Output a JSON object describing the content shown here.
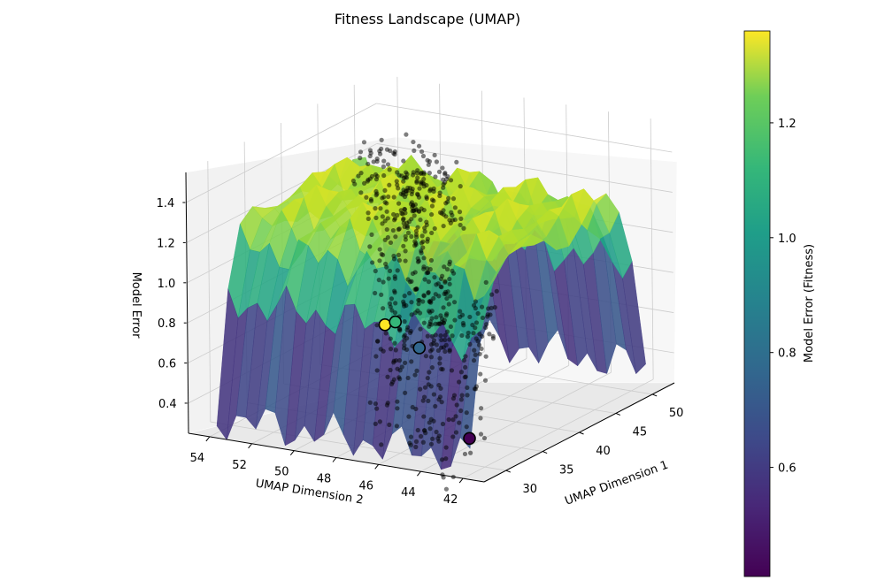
{
  "chart_data": {
    "type": "scatter3d-surface",
    "title": "Fitness Landscape (UMAP)",
    "xlabel": "UMAP Dimension 1",
    "ylabel": "UMAP Dimension 2",
    "zlabel": "Model Error",
    "xlim": [
      27,
      53
    ],
    "ylim": [
      41,
      55
    ],
    "zlim": [
      0.25,
      1.55
    ],
    "x_ticks": [
      "30",
      "35",
      "40",
      "45",
      "50"
    ],
    "y_ticks": [
      "42",
      "44",
      "46",
      "48",
      "50",
      "52",
      "54"
    ],
    "z_ticks": [
      "0.4",
      "0.6",
      "0.8",
      "1.0",
      "1.2",
      "1.4"
    ],
    "grid": true,
    "colormap": "viridis",
    "colorbar": {
      "label": "Model Error (Fitness)",
      "range": [
        0.41,
        1.36
      ],
      "ticks": [
        "0.6",
        "0.8",
        "1.0",
        "1.2"
      ]
    },
    "highlighted_points": [
      {
        "x": 50.7,
        "y": 53.9,
        "z": 0.36,
        "color": "#fde725"
      },
      {
        "x": 50.4,
        "y": 53.3,
        "z": 0.39,
        "color": "#35b779"
      },
      {
        "x": 47.6,
        "y": 51.2,
        "z": 0.35,
        "color": "#31688e"
      },
      {
        "x": 28.8,
        "y": 42.3,
        "z": 0.41,
        "color": "#440154"
      }
    ],
    "surface": {
      "x_range": [
        28,
        52
      ],
      "y_range": [
        42,
        54
      ],
      "z_range": [
        0.4,
        1.36
      ]
    },
    "scatter_color": "#000000",
    "axis_pane_color": "#f2f2f2",
    "grid_color": "#cccccc"
  }
}
